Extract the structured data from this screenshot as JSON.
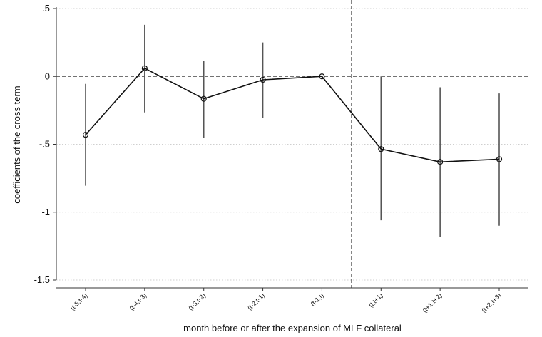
{
  "chart_data": {
    "type": "line",
    "xlabel": "month before or after the expansion of MLF collateral",
    "ylabel": "coefficients of the cross term",
    "categories": [
      "(t-5,t-4)",
      "(t-4,t-3)",
      "(t-3,t-2)",
      "(t-2,t-1)",
      "(t-1,t)",
      "(t,t+1)",
      "(t+1,t+2)",
      "(t+2,t+3)"
    ],
    "values": [
      -0.43,
      0.06,
      -0.165,
      -0.025,
      0.0,
      -0.535,
      -0.63,
      -0.61
    ],
    "ci_lower": [
      -0.805,
      -0.265,
      -0.45,
      -0.305,
      0.0,
      -1.06,
      -1.18,
      -1.1
    ],
    "ci_upper": [
      -0.055,
      0.38,
      0.115,
      0.25,
      0.0,
      0.0,
      -0.08,
      -0.125
    ],
    "ylim": [
      -1.5,
      0.5
    ],
    "yticks": [
      0.5,
      0,
      -0.5,
      -1,
      -1.5
    ],
    "ytick_labels": [
      ".5",
      "0",
      "-.5",
      "-1",
      "-1.5"
    ],
    "reference_line_y": 0,
    "reference_line_x_between": [
      "(t-1,t)",
      "(t,t+1)"
    ],
    "grid": true,
    "colors": {
      "line": "#111111",
      "ci": "#555555",
      "grid": "#cfcfcf",
      "reference": "#444444"
    }
  }
}
